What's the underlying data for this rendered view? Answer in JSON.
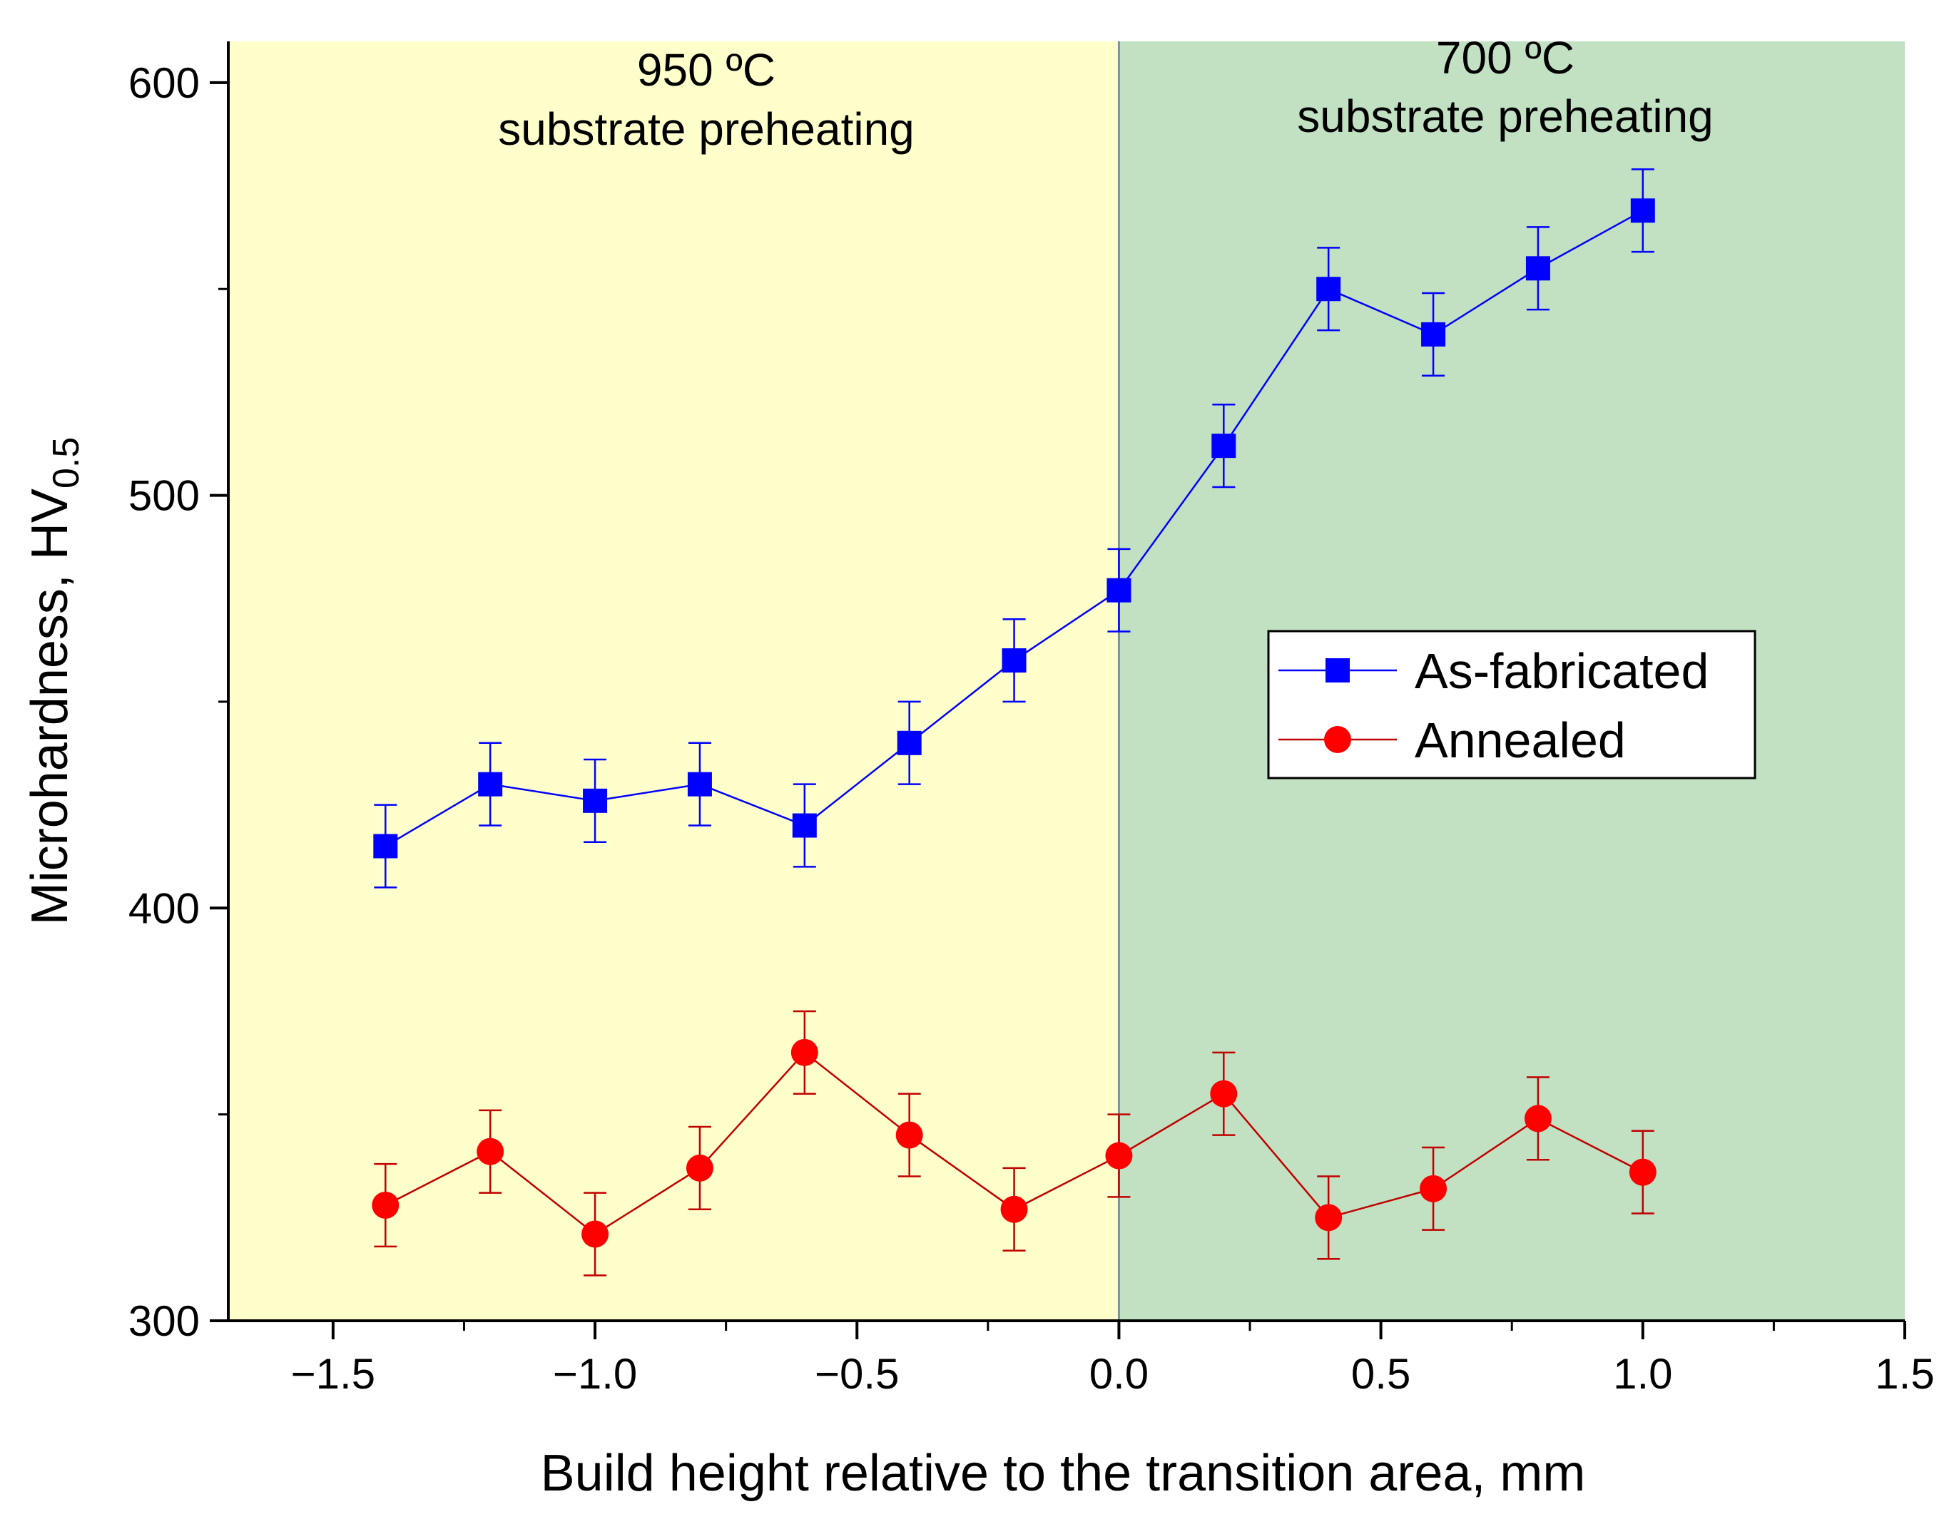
{
  "chart_data": {
    "type": "line",
    "xlabel": "Build height relative to the transition area, mm",
    "ylabel": "Microhardness, HV",
    "ylabel_subscript": "0.5",
    "xlim": [
      -1.7,
      1.5
    ],
    "ylim": [
      300,
      610
    ],
    "x_ticks": [
      -1.5,
      -1.0,
      -0.5,
      0.0,
      0.5,
      1.0,
      1.5
    ],
    "x_tick_labels": [
      "−1.5",
      "−1.0",
      "−0.5",
      "0.0",
      "0.5",
      "1.0",
      "1.5"
    ],
    "y_ticks": [
      300,
      400,
      500,
      600
    ],
    "y_tick_labels": [
      "300",
      "400",
      "500",
      "600"
    ],
    "regions": [
      {
        "x_from": -1.7,
        "x_to": 0.0,
        "color": "#FFFFCC",
        "line1": "950 ºC",
        "line2": "substrate preheating"
      },
      {
        "x_from": 0.0,
        "x_to": 1.5,
        "color": "#C2E0C2",
        "line1": "700 ºC",
        "line2": "substrate preheating"
      }
    ],
    "x": [
      -1.4,
      -1.2,
      -1.0,
      -0.8,
      -0.6,
      -0.4,
      -0.2,
      0.0,
      0.2,
      0.4,
      0.6,
      0.8,
      1.0
    ],
    "series": [
      {
        "name": "As-fabricated",
        "marker": "square",
        "color": "#0000FF",
        "values": [
          415,
          430,
          426,
          430,
          420,
          440,
          460,
          477,
          512,
          550,
          539,
          555,
          569
        ],
        "error": 10
      },
      {
        "name": "Annealed",
        "marker": "circle",
        "color": "#FF0000",
        "line_color": "#C00000",
        "values": [
          328,
          341,
          321,
          337,
          365,
          345,
          327,
          340,
          355,
          325,
          332,
          349,
          336
        ],
        "error": 10
      }
    ],
    "legend_position": "right-center",
    "grid": false
  }
}
